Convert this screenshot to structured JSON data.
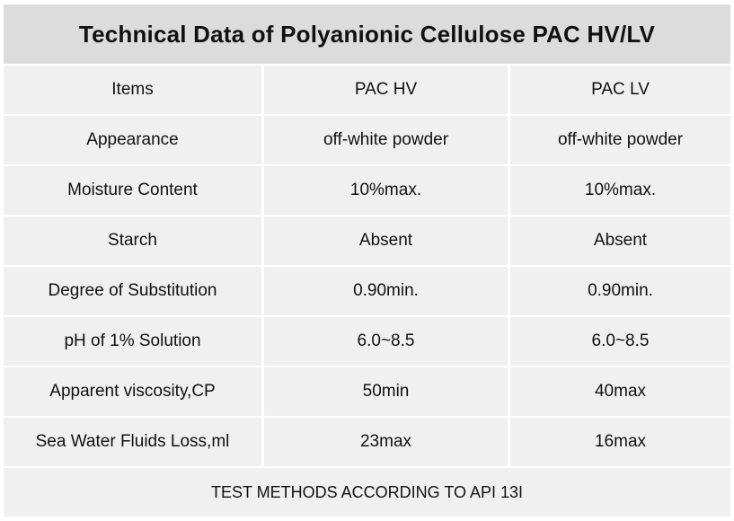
{
  "title": "Technical Data of Polyanionic Cellulose PAC HV/LV",
  "table": {
    "headers": [
      "Items",
      "PAC HV",
      "PAC LV"
    ],
    "rows": [
      [
        "Appearance",
        "off-white powder",
        "off-white powder"
      ],
      [
        "Moisture Content",
        "10%max.",
        "10%max."
      ],
      [
        "Starch",
        "Absent",
        "Absent"
      ],
      [
        "Degree of Substitution",
        "0.90min.",
        "0.90min."
      ],
      [
        "pH of 1% Solution",
        "6.0~8.5",
        "6.0~8.5"
      ],
      [
        "Apparent viscosity,CP",
        "50min",
        "40max"
      ],
      [
        "Sea Water Fluids Loss,ml",
        "23max",
        "16max"
      ]
    ]
  },
  "footer": "TEST METHODS ACCORDING TO API 13I"
}
